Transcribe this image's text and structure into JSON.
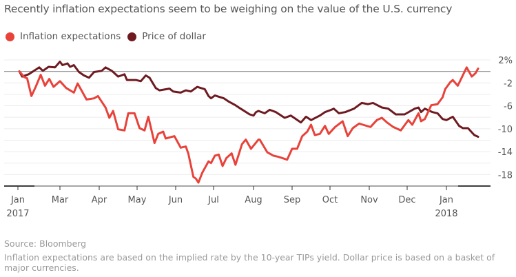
{
  "title": "Recently inflation expectations seem to be weighing on the value of the U.S. currency",
  "source": "Source: Bloomberg",
  "note": "Inflation expectations are based on the implied rate by the 10-year TIPs yield. Dollar price is based on a basket of major currencies.",
  "chart_data": {
    "type": "line",
    "title": "Recently inflation expectations seem to be weighing on the value of the U.S. currency",
    "xlabel": "",
    "ylabel": "",
    "ylim": [
      -20,
      2
    ],
    "grid": true,
    "legend_position": "top-left",
    "y_ticks": [
      {
        "value": 2,
        "label": "2%"
      },
      {
        "value": -2,
        "label": "-2"
      },
      {
        "value": -6,
        "label": "-6"
      },
      {
        "value": -10,
        "label": "-10"
      },
      {
        "value": -14,
        "label": "-14"
      },
      {
        "value": -18,
        "label": "-18"
      }
    ],
    "x_ticks": [
      {
        "date": "2017-01-01",
        "label": "Jan",
        "sublabel": "2017"
      },
      {
        "date": "2017-03-01",
        "label": "Mar",
        "sublabel": ""
      },
      {
        "date": "2017-04-01",
        "label": "Apr",
        "sublabel": ""
      },
      {
        "date": "2017-05-01",
        "label": "May",
        "sublabel": ""
      },
      {
        "date": "2017-06-01",
        "label": "Jun",
        "sublabel": ""
      },
      {
        "date": "2017-07-01",
        "label": "Jul",
        "sublabel": ""
      },
      {
        "date": "2017-08-01",
        "label": "Aug",
        "sublabel": ""
      },
      {
        "date": "2017-09-01",
        "label": "Sep",
        "sublabel": ""
      },
      {
        "date": "2017-10-01",
        "label": "Oct",
        "sublabel": ""
      },
      {
        "date": "2017-11-01",
        "label": "Nov",
        "sublabel": ""
      },
      {
        "date": "2017-12-01",
        "label": "Dec",
        "sublabel": ""
      },
      {
        "date": "2018-01-01",
        "label": "Jan",
        "sublabel": "2018"
      }
    ],
    "series": [
      {
        "name": "Inflation expectations",
        "color": "#e8423a",
        "points": [
          [
            "2017-01-03",
            0
          ],
          [
            "2017-01-10",
            -1
          ],
          [
            "2017-01-14",
            -1.2
          ],
          [
            "2017-01-20",
            -4.3
          ],
          [
            "2017-01-26",
            -2.7
          ],
          [
            "2017-02-02",
            -0.6
          ],
          [
            "2017-02-08",
            -2.5
          ],
          [
            "2017-02-14",
            -1.3
          ],
          [
            "2017-02-20",
            -2.7
          ],
          [
            "2017-03-01",
            -1.7
          ],
          [
            "2017-03-06",
            -2.9
          ],
          [
            "2017-03-12",
            -3.7
          ],
          [
            "2017-03-15",
            -2.1
          ],
          [
            "2017-03-22",
            -4.9
          ],
          [
            "2017-03-28",
            -4.7
          ],
          [
            "2017-03-31",
            -4.3
          ],
          [
            "2017-04-03",
            -5.3
          ],
          [
            "2017-04-06",
            -6.3
          ],
          [
            "2017-04-09",
            -8.1
          ],
          [
            "2017-04-12",
            -6.9
          ],
          [
            "2017-04-16",
            -10.1
          ],
          [
            "2017-04-21",
            -10.3
          ],
          [
            "2017-04-24",
            -7.3
          ],
          [
            "2017-04-29",
            -7.3
          ],
          [
            "2017-05-03",
            -9.9
          ],
          [
            "2017-05-07",
            -10.3
          ],
          [
            "2017-05-10",
            -7.9
          ],
          [
            "2017-05-15",
            -12.5
          ],
          [
            "2017-05-18",
            -10.9
          ],
          [
            "2017-05-22",
            -10.5
          ],
          [
            "2017-05-24",
            -11.7
          ],
          [
            "2017-05-31",
            -11.3
          ],
          [
            "2017-06-05",
            -13.3
          ],
          [
            "2017-06-09",
            -13.1
          ],
          [
            "2017-06-11",
            -14.3
          ],
          [
            "2017-06-15",
            -18.4
          ],
          [
            "2017-06-17",
            -18.7
          ],
          [
            "2017-06-19",
            -19.4
          ],
          [
            "2017-06-22",
            -17.7
          ],
          [
            "2017-06-27",
            -15.7
          ],
          [
            "2017-06-29",
            -16
          ],
          [
            "2017-07-02",
            -14.7
          ],
          [
            "2017-07-05",
            -14.5
          ],
          [
            "2017-07-08",
            -16.5
          ],
          [
            "2017-07-11",
            -15.1
          ],
          [
            "2017-07-15",
            -14.3
          ],
          [
            "2017-07-18",
            -16.3
          ],
          [
            "2017-07-23",
            -12.7
          ],
          [
            "2017-07-26",
            -11.9
          ],
          [
            "2017-07-30",
            -13.5
          ],
          [
            "2017-08-05",
            -11.9
          ],
          [
            "2017-08-06",
            -11.9
          ],
          [
            "2017-08-12",
            -14.1
          ],
          [
            "2017-08-17",
            -14.7
          ],
          [
            "2017-08-21",
            -14.9
          ],
          [
            "2017-08-28",
            -15.4
          ],
          [
            "2017-09-01",
            -13.5
          ],
          [
            "2017-09-05",
            -13.5
          ],
          [
            "2017-09-09",
            -11.3
          ],
          [
            "2017-09-13",
            -10.5
          ],
          [
            "2017-09-16",
            -9.3
          ],
          [
            "2017-09-19",
            -11.1
          ],
          [
            "2017-09-23",
            -10.9
          ],
          [
            "2017-09-27",
            -9.5
          ],
          [
            "2017-09-30",
            -10.9
          ],
          [
            "2017-10-05",
            -9.7
          ],
          [
            "2017-10-11",
            -8.7
          ],
          [
            "2017-10-15",
            -11.3
          ],
          [
            "2017-10-19",
            -9.9
          ],
          [
            "2017-10-24",
            -9.1
          ],
          [
            "2017-10-27",
            -9.3
          ],
          [
            "2017-11-02",
            -9.7
          ],
          [
            "2017-11-07",
            -8.5
          ],
          [
            "2017-11-11",
            -8.1
          ],
          [
            "2017-11-15",
            -8.9
          ],
          [
            "2017-11-20",
            -9.7
          ],
          [
            "2017-11-26",
            -10.3
          ],
          [
            "2017-12-02",
            -8.5
          ],
          [
            "2017-12-05",
            -9.3
          ],
          [
            "2017-12-10",
            -7.3
          ],
          [
            "2017-12-12",
            -8.7
          ],
          [
            "2017-12-15",
            -8.3
          ],
          [
            "2017-12-20",
            -5.9
          ],
          [
            "2017-12-25",
            -5.7
          ],
          [
            "2017-12-29",
            -4.5
          ],
          [
            "2017-12-31",
            -3.1
          ],
          [
            "2018-01-04",
            -1.9
          ],
          [
            "2018-01-06",
            -1.5
          ],
          [
            "2018-01-10",
            -2.5
          ],
          [
            "2018-01-17",
            0.7
          ],
          [
            "2018-01-21",
            -0.9
          ],
          [
            "2018-01-24",
            -0.3
          ],
          [
            "2018-01-26",
            0.5
          ]
        ]
      },
      {
        "name": "Price of dollar",
        "color": "#6e1a20",
        "points": [
          [
            "2017-01-03",
            0
          ],
          [
            "2017-01-07",
            -0.9
          ],
          [
            "2017-01-16",
            -0.5
          ],
          [
            "2017-01-21",
            -0.1
          ],
          [
            "2017-01-31",
            0.7
          ],
          [
            "2017-02-05",
            0.1
          ],
          [
            "2017-02-13",
            0.8
          ],
          [
            "2017-02-22",
            0.7
          ],
          [
            "2017-03-01",
            1.7
          ],
          [
            "2017-03-03",
            1.1
          ],
          [
            "2017-03-07",
            1.4
          ],
          [
            "2017-03-09",
            0.8
          ],
          [
            "2017-03-12",
            1.1
          ],
          [
            "2017-03-16",
            -0.1
          ],
          [
            "2017-03-20",
            -0.7
          ],
          [
            "2017-03-24",
            -1.1
          ],
          [
            "2017-03-28",
            -0.1
          ],
          [
            "2017-04-03",
            0.1
          ],
          [
            "2017-04-06",
            0.7
          ],
          [
            "2017-04-11",
            0.1
          ],
          [
            "2017-04-16",
            -0.9
          ],
          [
            "2017-04-21",
            -0.5
          ],
          [
            "2017-04-23",
            -1.5
          ],
          [
            "2017-04-30",
            -1.5
          ],
          [
            "2017-05-04",
            -1.7
          ],
          [
            "2017-05-08",
            -0.7
          ],
          [
            "2017-05-11",
            -1.1
          ],
          [
            "2017-05-16",
            -2.9
          ],
          [
            "2017-05-19",
            -3.3
          ],
          [
            "2017-05-27",
            -3
          ],
          [
            "2017-05-30",
            -3.5
          ],
          [
            "2017-06-05",
            -3.7
          ],
          [
            "2017-06-09",
            -3.3
          ],
          [
            "2017-06-13",
            -3.5
          ],
          [
            "2017-06-18",
            -2.7
          ],
          [
            "2017-06-24",
            -3.1
          ],
          [
            "2017-06-27",
            -4.3
          ],
          [
            "2017-06-29",
            -4.7
          ],
          [
            "2017-07-02",
            -4.2
          ],
          [
            "2017-07-09",
            -4.7
          ],
          [
            "2017-07-13",
            -5.3
          ],
          [
            "2017-07-18",
            -5.9
          ],
          [
            "2017-07-22",
            -6.5
          ],
          [
            "2017-07-29",
            -7.5
          ],
          [
            "2017-08-01",
            -7.7
          ],
          [
            "2017-08-03",
            -7.1
          ],
          [
            "2017-08-05",
            -6.9
          ],
          [
            "2017-08-10",
            -7.3
          ],
          [
            "2017-08-14",
            -6.7
          ],
          [
            "2017-08-19",
            -7.1
          ],
          [
            "2017-08-26",
            -8.1
          ],
          [
            "2017-08-31",
            -7.7
          ],
          [
            "2017-09-08",
            -8.9
          ],
          [
            "2017-09-12",
            -7.9
          ],
          [
            "2017-09-16",
            -8.5
          ],
          [
            "2017-09-23",
            -7.7
          ],
          [
            "2017-09-27",
            -7.1
          ],
          [
            "2017-10-02",
            -6.7
          ],
          [
            "2017-10-04",
            -6.5
          ],
          [
            "2017-10-08",
            -7.3
          ],
          [
            "2017-10-13",
            -7.1
          ],
          [
            "2017-10-20",
            -6.5
          ],
          [
            "2017-10-26",
            -5.5
          ],
          [
            "2017-10-31",
            -5.7
          ],
          [
            "2017-11-04",
            -5.5
          ],
          [
            "2017-11-11",
            -6.3
          ],
          [
            "2017-11-16",
            -6.5
          ],
          [
            "2017-11-22",
            -7.5
          ],
          [
            "2017-11-29",
            -7.5
          ],
          [
            "2017-12-07",
            -6.5
          ],
          [
            "2017-12-10",
            -6.3
          ],
          [
            "2017-12-12",
            -7.1
          ],
          [
            "2017-12-15",
            -6.5
          ],
          [
            "2017-12-21",
            -7.1
          ],
          [
            "2017-12-25",
            -7.3
          ],
          [
            "2017-12-29",
            -8.3
          ],
          [
            "2018-01-01",
            -8.5
          ],
          [
            "2018-01-06",
            -7.9
          ],
          [
            "2018-01-11",
            -9.5
          ],
          [
            "2018-01-14",
            -9.9
          ],
          [
            "2018-01-18",
            -9.9
          ],
          [
            "2018-01-23",
            -11.1
          ],
          [
            "2018-01-26",
            -11.4
          ]
        ]
      }
    ]
  }
}
